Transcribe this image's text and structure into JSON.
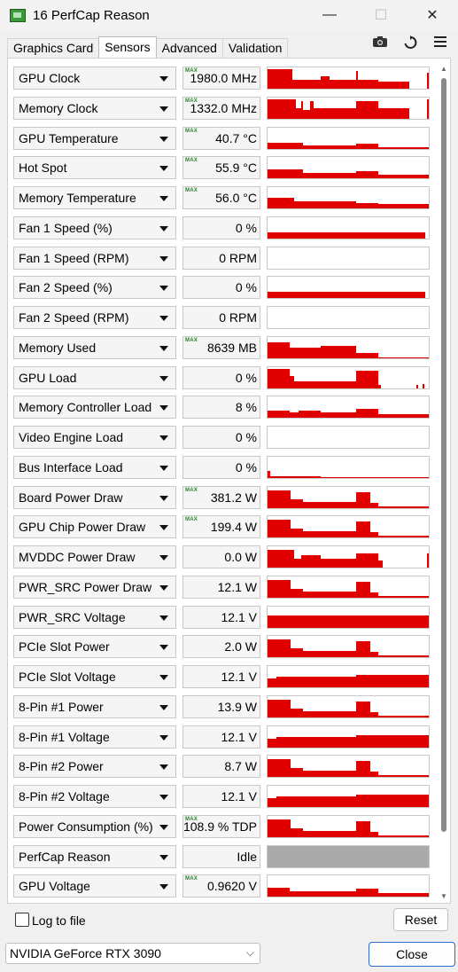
{
  "window": {
    "title": "16  PerfCap Reason"
  },
  "window_controls": {
    "minimize": "—",
    "maximize": "☐",
    "close": "✕"
  },
  "tabs": [
    {
      "label": "Graphics Card",
      "active": false
    },
    {
      "label": "Sensors",
      "active": true
    },
    {
      "label": "Advanced",
      "active": false
    },
    {
      "label": "Validation",
      "active": false
    }
  ],
  "toolbar": {
    "camera_icon": "camera-icon",
    "refresh_icon": "refresh-icon",
    "menu_icon": "hamburger-icon"
  },
  "max_tag": "MAX",
  "colors": {
    "graph": "#e00000",
    "perfcap": "#aaaaaa",
    "max_tag": "#189018"
  },
  "sensors": [
    {
      "name": "GPU Clock",
      "value": "1980.0 MHz",
      "max": true,
      "graph": "clock"
    },
    {
      "name": "Memory Clock",
      "value": "1332.0 MHz",
      "max": true,
      "graph": "memclock"
    },
    {
      "name": "GPU Temperature",
      "value": "40.7 °C",
      "max": true,
      "graph": "temp"
    },
    {
      "name": "Hot Spot",
      "value": "55.9 °C",
      "max": true,
      "graph": "temp2"
    },
    {
      "name": "Memory Temperature",
      "value": "56.0 °C",
      "max": true,
      "graph": "temp3"
    },
    {
      "name": "Fan 1 Speed (%)",
      "value": "0 %",
      "max": false,
      "graph": "fanpct"
    },
    {
      "name": "Fan 1 Speed (RPM)",
      "value": "0 RPM",
      "max": false,
      "graph": "none"
    },
    {
      "name": "Fan 2 Speed (%)",
      "value": "0 %",
      "max": false,
      "graph": "fanpct"
    },
    {
      "name": "Fan 2 Speed (RPM)",
      "value": "0 RPM",
      "max": false,
      "graph": "none"
    },
    {
      "name": "Memory Used",
      "value": "8639 MB",
      "max": true,
      "graph": "memused"
    },
    {
      "name": "GPU Load",
      "value": "0 %",
      "max": false,
      "graph": "load"
    },
    {
      "name": "Memory Controller Load",
      "value": "8 %",
      "max": false,
      "graph": "mcload"
    },
    {
      "name": "Video Engine Load",
      "value": "0 %",
      "max": false,
      "graph": "none"
    },
    {
      "name": "Bus Interface Load",
      "value": "0 %",
      "max": false,
      "graph": "bus"
    },
    {
      "name": "Board Power Draw",
      "value": "381.2 W",
      "max": true,
      "graph": "power"
    },
    {
      "name": "GPU Chip Power Draw",
      "value": "199.4 W",
      "max": true,
      "graph": "power"
    },
    {
      "name": "MVDDC Power Draw",
      "value": "0.0 W",
      "max": false,
      "graph": "mvddc"
    },
    {
      "name": "PWR_SRC Power Draw",
      "value": "12.1 W",
      "max": false,
      "graph": "power"
    },
    {
      "name": "PWR_SRC Voltage",
      "value": "12.1 V",
      "max": false,
      "graph": "full"
    },
    {
      "name": "PCIe Slot Power",
      "value": "2.0 W",
      "max": false,
      "graph": "power"
    },
    {
      "name": "PCIe Slot Voltage",
      "value": "12.1 V",
      "max": false,
      "graph": "volt"
    },
    {
      "name": "8-Pin #1 Power",
      "value": "13.9 W",
      "max": false,
      "graph": "power"
    },
    {
      "name": "8-Pin #1 Voltage",
      "value": "12.1 V",
      "max": false,
      "graph": "volt"
    },
    {
      "name": "8-Pin #2 Power",
      "value": "8.7 W",
      "max": false,
      "graph": "power"
    },
    {
      "name": "8-Pin #2 Voltage",
      "value": "12.1 V",
      "max": false,
      "graph": "volt"
    },
    {
      "name": "Power Consumption (%)",
      "value": "108.9 % TDP",
      "max": true,
      "graph": "power"
    },
    {
      "name": "PerfCap Reason",
      "value": "Idle",
      "max": false,
      "graph": "perfcap"
    },
    {
      "name": "GPU Voltage",
      "value": "0.9620 V",
      "max": true,
      "graph": "gpuvolt"
    }
  ],
  "footer": {
    "log_label": "Log to file",
    "reset_label": "Reset",
    "gpu_selected": "NVIDIA GeForce RTX 3090",
    "close_label": "Close"
  }
}
